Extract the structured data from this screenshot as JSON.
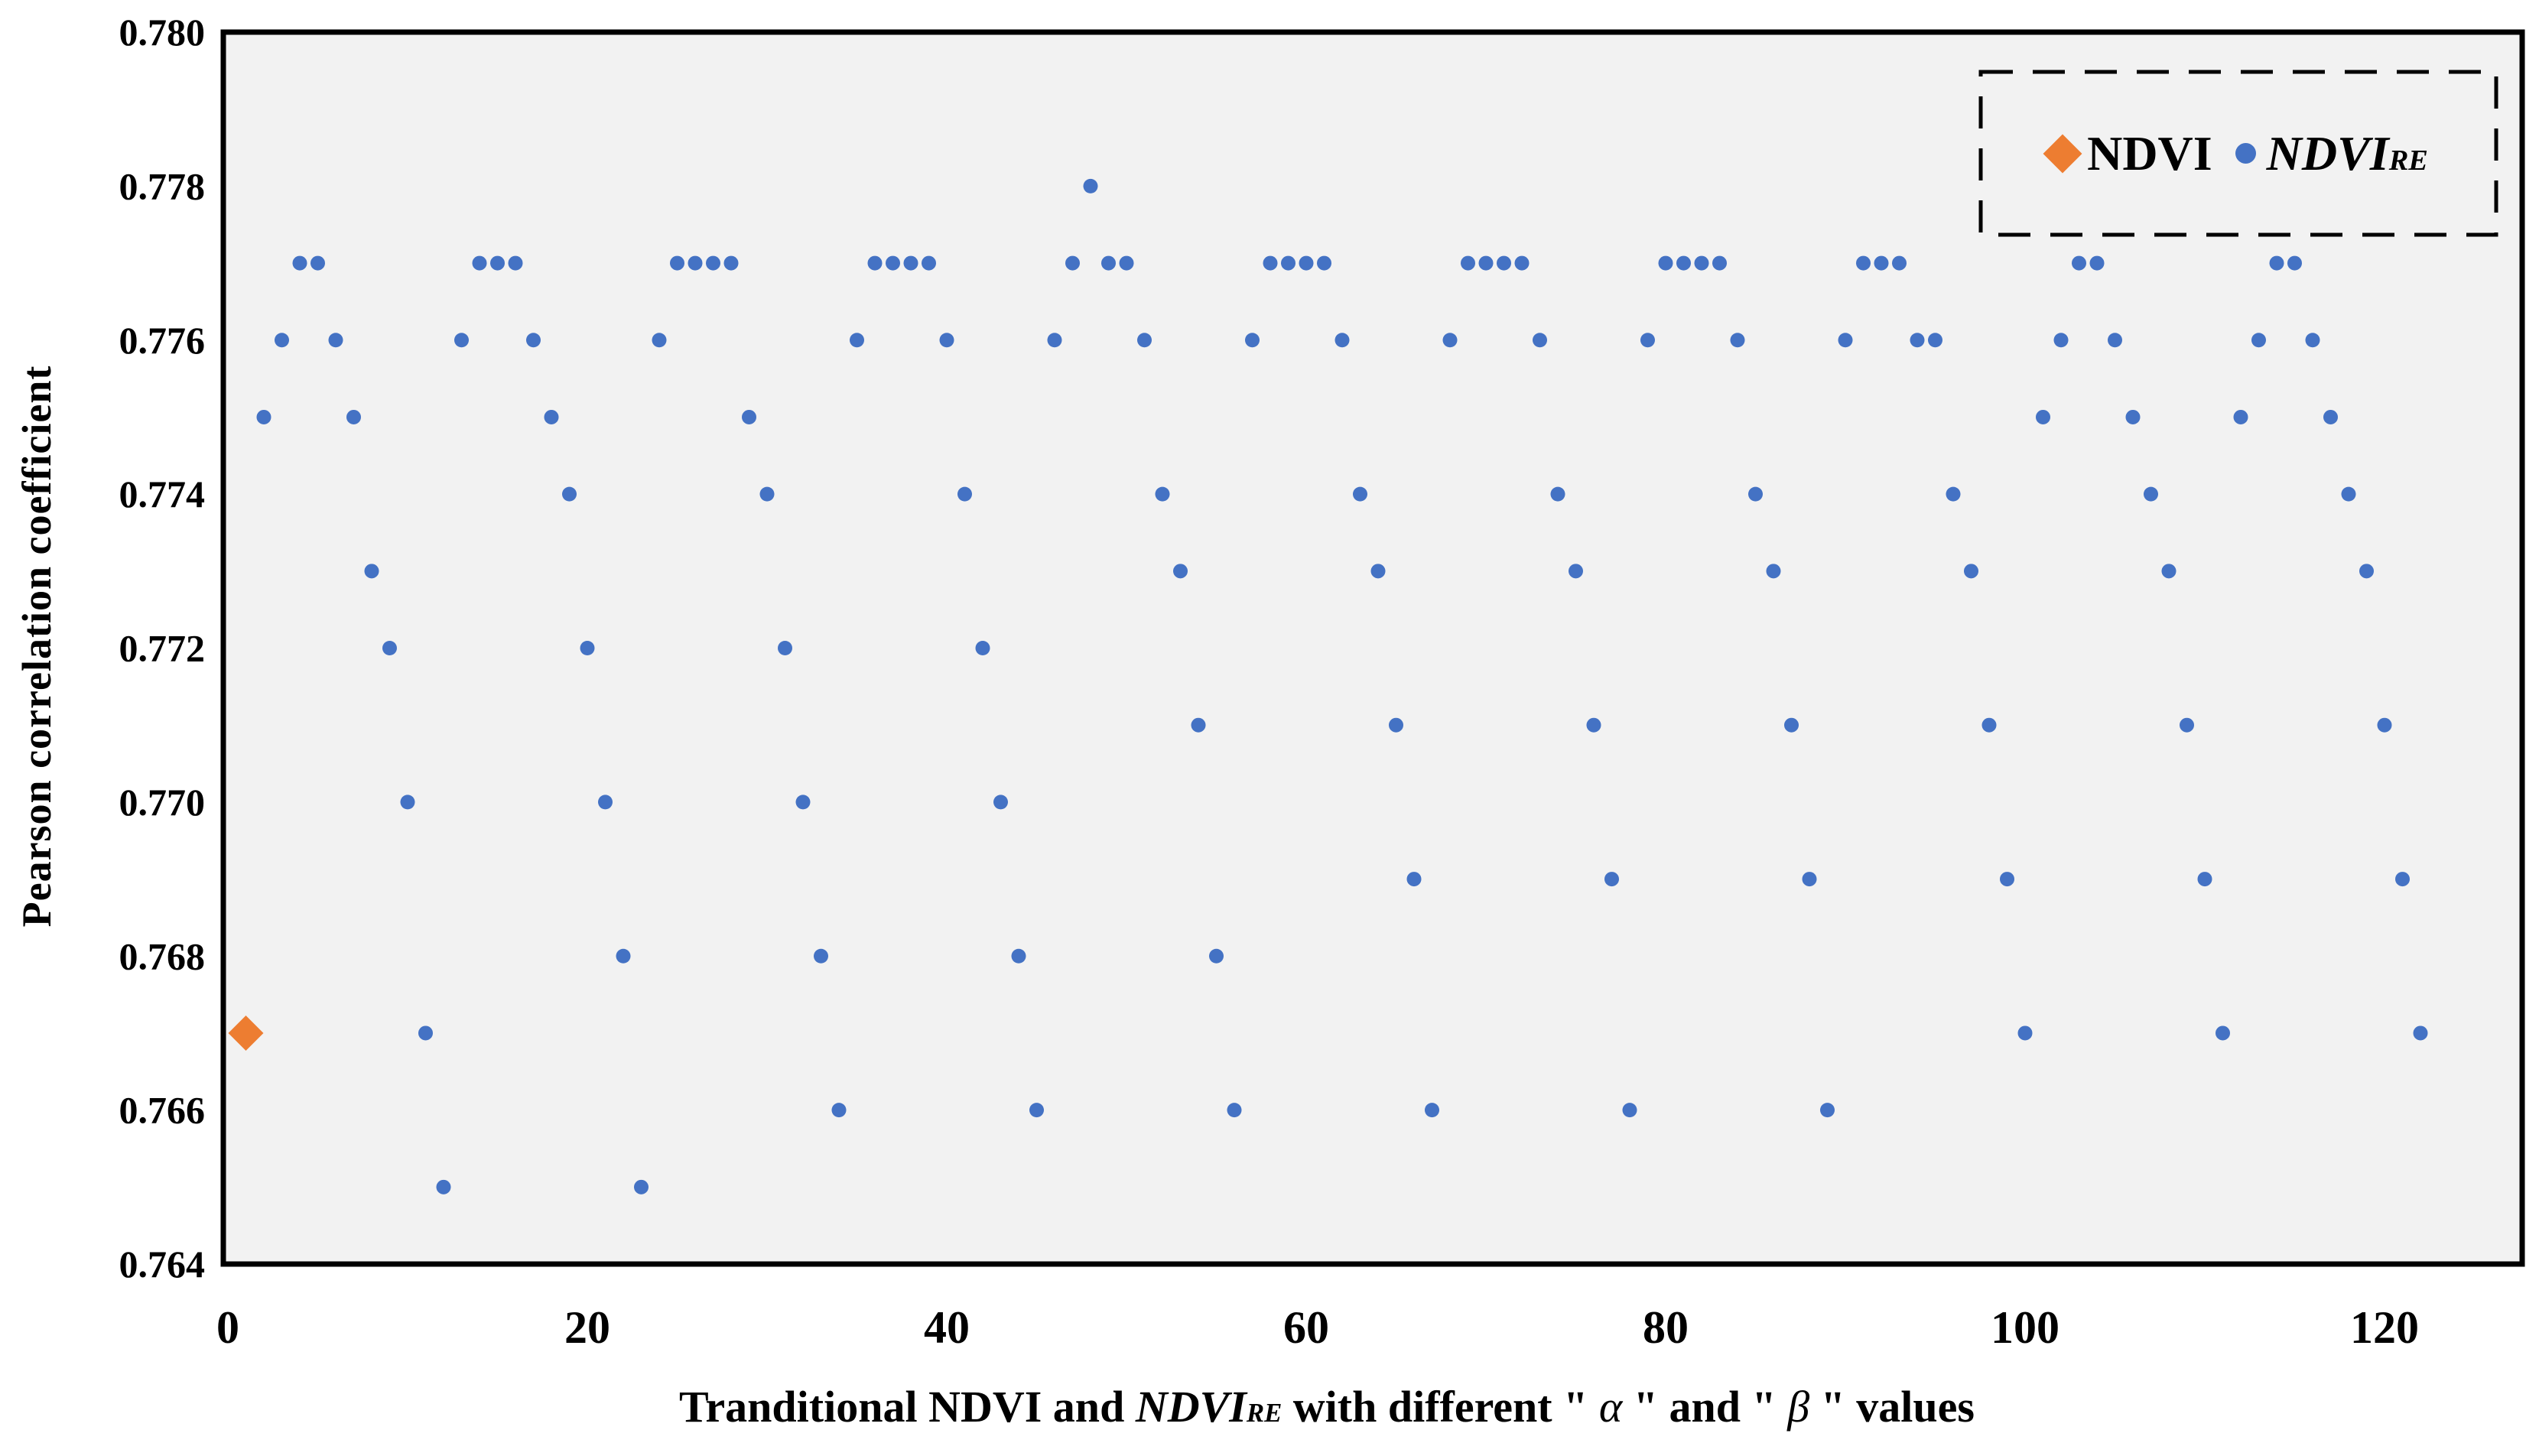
{
  "figure": {
    "background": "#FFFFFF",
    "plot_background": "#F2F2F2",
    "border_color": "#000000",
    "text_color": "#000000"
  },
  "chart_data": {
    "type": "scatter",
    "title": "",
    "ylabel": "Pearson correlation coefficient",
    "xlabel_segments": [
      {
        "t": "Tranditional NDVI and ",
        "s": "b"
      },
      {
        "t": "NDVI",
        "s": "bi"
      },
      {
        "t": "RE",
        "s": "bisub"
      },
      {
        "t": " with different \" ",
        "s": "b"
      },
      {
        "t": "α",
        "s": "i"
      },
      {
        "t": " \" and \" ",
        "s": "b"
      },
      {
        "t": "β",
        "s": "i"
      },
      {
        "t": " \" values",
        "s": "b"
      }
    ],
    "xlim": [
      0,
      127.6
    ],
    "ylim": [
      0.764,
      0.78
    ],
    "x_ticks": [
      0,
      20,
      40,
      60,
      80,
      100,
      120
    ],
    "y_ticks": [
      0.78,
      0.778,
      0.776,
      0.774,
      0.772,
      0.77,
      0.768,
      0.766,
      0.764
    ],
    "y_tick_decimals": 3,
    "grid": false,
    "legend_position": "top-right-inside",
    "legend": [
      {
        "marker": "diamond",
        "color": "#ED7D31",
        "label_segments": [
          {
            "t": "NDVI",
            "s": "b"
          }
        ]
      },
      {
        "marker": "dot",
        "color": "#4472C4",
        "label_segments": [
          {
            "t": "NDVI",
            "s": "bi"
          },
          {
            "t": "RE",
            "s": "bisub"
          }
        ]
      }
    ],
    "series": [
      {
        "name": "NDVI",
        "marker": "diamond",
        "color": "#ED7D31",
        "points": [
          [
            1,
            0.767
          ]
        ]
      },
      {
        "name": "NDVI_RE",
        "marker": "circle",
        "color": "#4472C4",
        "points": [
          [
            2,
            0.775
          ],
          [
            3,
            0.776
          ],
          [
            4,
            0.777
          ],
          [
            5,
            0.777
          ],
          [
            6,
            0.776
          ],
          [
            7,
            0.775
          ],
          [
            8,
            0.773
          ],
          [
            9,
            0.772
          ],
          [
            10,
            0.77
          ],
          [
            11,
            0.767
          ],
          [
            12,
            0.765
          ],
          [
            13,
            0.776
          ],
          [
            14,
            0.777
          ],
          [
            15,
            0.777
          ],
          [
            16,
            0.777
          ],
          [
            17,
            0.776
          ],
          [
            18,
            0.775
          ],
          [
            19,
            0.774
          ],
          [
            20,
            0.772
          ],
          [
            21,
            0.77
          ],
          [
            22,
            0.768
          ],
          [
            23,
            0.765
          ],
          [
            24,
            0.776
          ],
          [
            25,
            0.777
          ],
          [
            26,
            0.777
          ],
          [
            27,
            0.777
          ],
          [
            28,
            0.777
          ],
          [
            29,
            0.775
          ],
          [
            30,
            0.774
          ],
          [
            31,
            0.772
          ],
          [
            32,
            0.77
          ],
          [
            33,
            0.768
          ],
          [
            34,
            0.766
          ],
          [
            35,
            0.776
          ],
          [
            36,
            0.777
          ],
          [
            37,
            0.777
          ],
          [
            38,
            0.777
          ],
          [
            39,
            0.777
          ],
          [
            40,
            0.776
          ],
          [
            41,
            0.774
          ],
          [
            42,
            0.772
          ],
          [
            43,
            0.77
          ],
          [
            44,
            0.768
          ],
          [
            45,
            0.766
          ],
          [
            46,
            0.776
          ],
          [
            47,
            0.777
          ],
          [
            48,
            0.778
          ],
          [
            49,
            0.777
          ],
          [
            50,
            0.777
          ],
          [
            51,
            0.776
          ],
          [
            52,
            0.774
          ],
          [
            53,
            0.773
          ],
          [
            54,
            0.771
          ],
          [
            55,
            0.768
          ],
          [
            56,
            0.766
          ],
          [
            57,
            0.776
          ],
          [
            58,
            0.777
          ],
          [
            59,
            0.777
          ],
          [
            60,
            0.777
          ],
          [
            61,
            0.777
          ],
          [
            62,
            0.776
          ],
          [
            63,
            0.774
          ],
          [
            64,
            0.773
          ],
          [
            65,
            0.771
          ],
          [
            66,
            0.769
          ],
          [
            67,
            0.766
          ],
          [
            68,
            0.776
          ],
          [
            69,
            0.777
          ],
          [
            70,
            0.777
          ],
          [
            71,
            0.777
          ],
          [
            72,
            0.777
          ],
          [
            73,
            0.776
          ],
          [
            74,
            0.774
          ],
          [
            75,
            0.773
          ],
          [
            76,
            0.771
          ],
          [
            77,
            0.769
          ],
          [
            78,
            0.766
          ],
          [
            79,
            0.776
          ],
          [
            80,
            0.777
          ],
          [
            81,
            0.777
          ],
          [
            82,
            0.777
          ],
          [
            83,
            0.777
          ],
          [
            84,
            0.776
          ],
          [
            85,
            0.774
          ],
          [
            86,
            0.773
          ],
          [
            87,
            0.771
          ],
          [
            88,
            0.769
          ],
          [
            89,
            0.766
          ],
          [
            90,
            0.776
          ],
          [
            91,
            0.777
          ],
          [
            92,
            0.777
          ],
          [
            93,
            0.777
          ],
          [
            94,
            0.776
          ],
          [
            95,
            0.776
          ],
          [
            96,
            0.774
          ],
          [
            97,
            0.773
          ],
          [
            98,
            0.771
          ],
          [
            99,
            0.769
          ],
          [
            100,
            0.767
          ],
          [
            101,
            0.775
          ],
          [
            102,
            0.776
          ],
          [
            103,
            0.777
          ],
          [
            104,
            0.777
          ],
          [
            105,
            0.776
          ],
          [
            106,
            0.775
          ],
          [
            107,
            0.774
          ],
          [
            108,
            0.773
          ],
          [
            109,
            0.771
          ],
          [
            110,
            0.769
          ],
          [
            111,
            0.767
          ],
          [
            112,
            0.775
          ],
          [
            113,
            0.776
          ],
          [
            114,
            0.777
          ],
          [
            115,
            0.777
          ],
          [
            116,
            0.776
          ],
          [
            117,
            0.775
          ],
          [
            118,
            0.774
          ],
          [
            119,
            0.773
          ],
          [
            120,
            0.771
          ],
          [
            121,
            0.769
          ],
          [
            122,
            0.767
          ]
        ]
      }
    ]
  }
}
